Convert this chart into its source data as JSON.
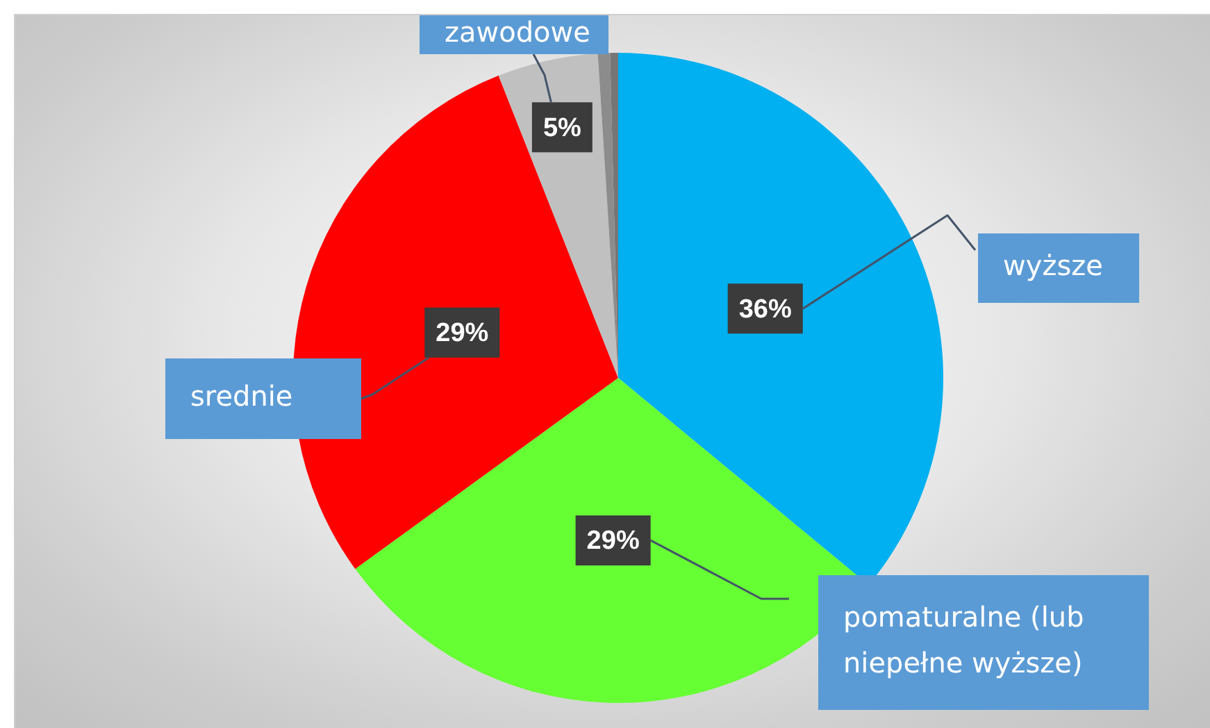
{
  "chart_data": {
    "type": "pie",
    "categories": [
      "wyższe",
      "pomaturalne (lub niepełne wyższe)",
      "srednie",
      "zawodowe",
      null,
      null
    ],
    "values": [
      36,
      29,
      29,
      5,
      0.6,
      0.4
    ],
    "colors": [
      "#00b0f0",
      "#66ff33",
      "#ff0000",
      "#c0c0c0",
      "#8c8c8c",
      "#767676"
    ],
    "value_labels": [
      "36%",
      "29%",
      "29%",
      "5%",
      null,
      null
    ]
  }
}
